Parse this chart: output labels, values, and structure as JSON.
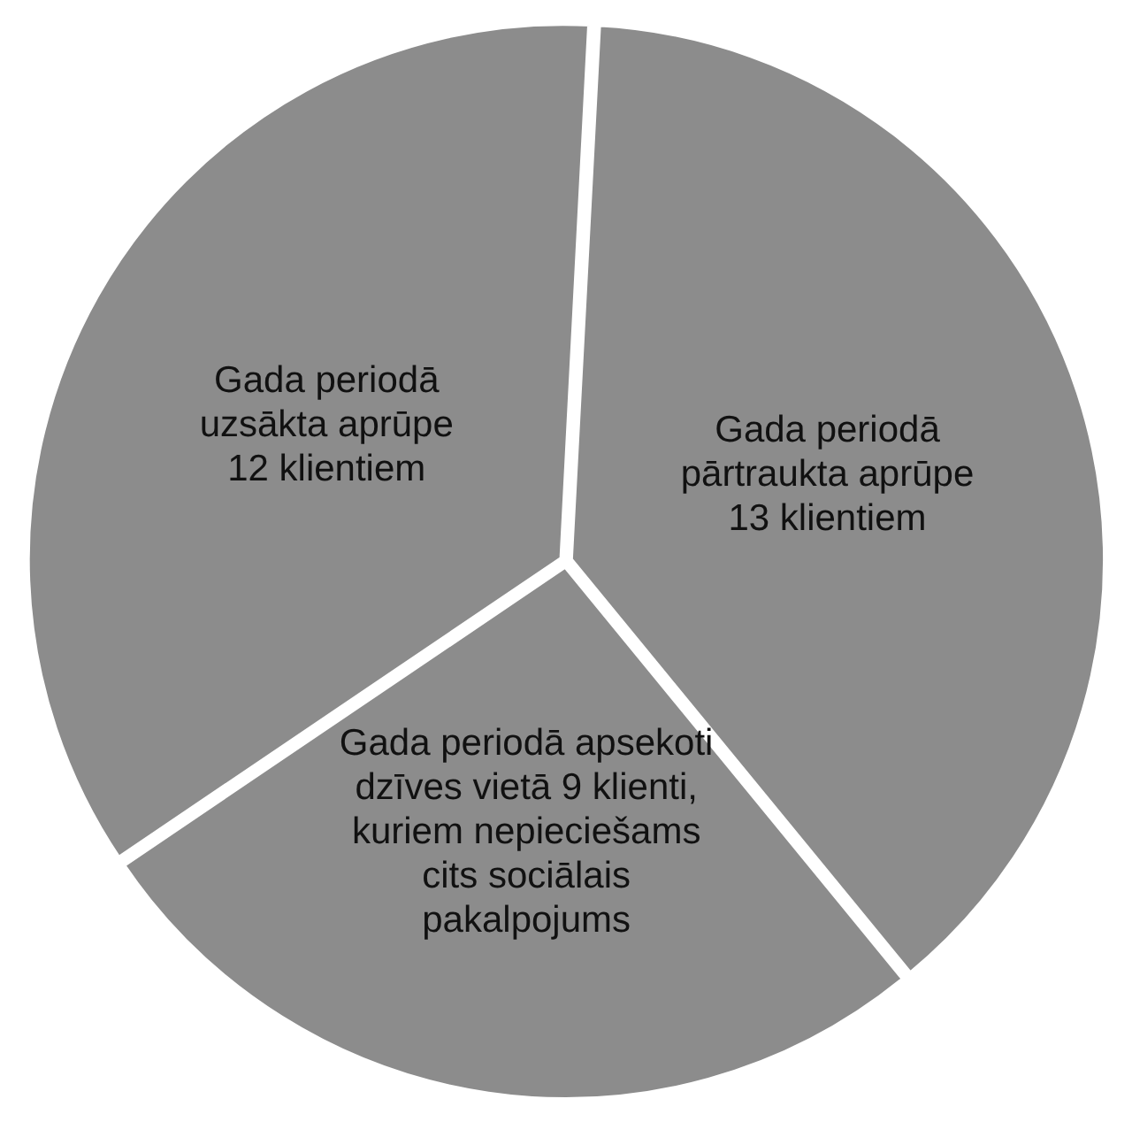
{
  "chart_data": {
    "type": "pie",
    "categories": [
      "Gada periodā pārtraukta aprūpe 13 klientiem",
      "Gada periodā apsekoti dzīves vietā 9 klienti, kuriem nepieciešams cits sociālais pakalpojums",
      "Gada periodā uzsākta aprūpe 12 klientiem"
    ],
    "values": [
      13,
      9,
      12
    ],
    "colors": [
      "#8c8c8c",
      "#8c8c8c",
      "#8c8c8c"
    ],
    "legend": false
  }
}
